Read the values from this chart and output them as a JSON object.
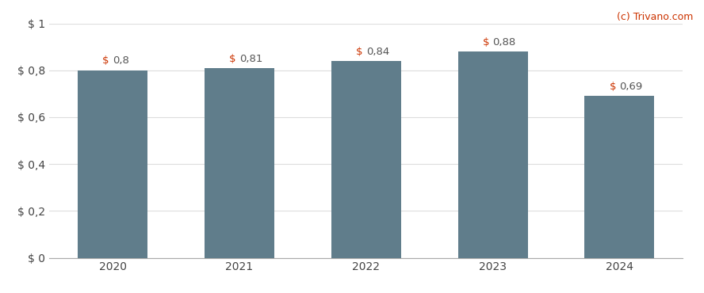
{
  "categories": [
    "2020",
    "2021",
    "2022",
    "2023",
    "2024"
  ],
  "values": [
    0.8,
    0.81,
    0.84,
    0.88,
    0.69
  ],
  "labels": [
    "$ 0,8",
    "$ 0,81",
    "$ 0,84",
    "$ 0,88",
    "$ 0,69"
  ],
  "bar_color": "#607d8b",
  "background_color": "#ffffff",
  "ylim": [
    0,
    1.0
  ],
  "yticks": [
    0,
    0.2,
    0.4,
    0.6,
    0.8,
    1.0
  ],
  "ytick_labels": [
    "$ 0",
    "$ 0,2",
    "$ 0,4",
    "$ 0,6",
    "$ 0,8",
    "$ 1"
  ],
  "watermark": "(c) Trivano.com",
  "watermark_color": "#cc3300",
  "grid_color": "#dddddd",
  "label_color_dollar": "#cc3300",
  "label_color_value": "#555555"
}
